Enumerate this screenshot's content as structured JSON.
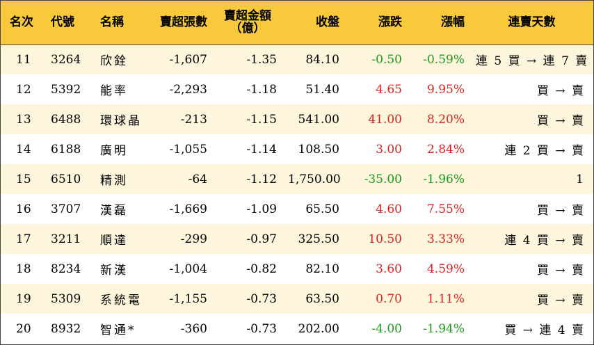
{
  "headers": {
    "rank": "名次",
    "code": "代號",
    "name": "名稱",
    "net_sell_lots": "賣超張數",
    "net_sell_amount": "賣超金額",
    "net_sell_amount_unit": "（億）",
    "close": "收盤",
    "change": "漲跌",
    "change_pct": "漲幅",
    "consecutive_days": "連賣天數"
  },
  "colors": {
    "header_bg": "#f8c93a",
    "row_alt_bg": "#fdf5dc",
    "up": "#e02020",
    "down": "#1a9a1a"
  },
  "rows": [
    {
      "rank": "11",
      "code": "3264",
      "name": "欣銓",
      "lots": "-1,607",
      "amount": "-1.35",
      "close": "84.10",
      "change": "-0.50",
      "pct": "-0.59%",
      "trend": "down",
      "days": "連 5 買 → 連 7 賣"
    },
    {
      "rank": "12",
      "code": "5392",
      "name": "能率",
      "lots": "-2,293",
      "amount": "-1.18",
      "close": "51.40",
      "change": "4.65",
      "pct": "9.95%",
      "trend": "up",
      "days": "買 → 賣"
    },
    {
      "rank": "13",
      "code": "6488",
      "name": "環球晶",
      "lots": "-213",
      "amount": "-1.15",
      "close": "541.00",
      "change": "41.00",
      "pct": "8.20%",
      "trend": "up",
      "days": "買 → 賣"
    },
    {
      "rank": "14",
      "code": "6188",
      "name": "廣明",
      "lots": "-1,055",
      "amount": "-1.14",
      "close": "108.50",
      "change": "3.00",
      "pct": "2.84%",
      "trend": "up",
      "days": "連 2 買 → 賣"
    },
    {
      "rank": "15",
      "code": "6510",
      "name": "精測",
      "lots": "-64",
      "amount": "-1.12",
      "close": "1,750.00",
      "change": "-35.00",
      "pct": "-1.96%",
      "trend": "down",
      "days": "1"
    },
    {
      "rank": "16",
      "code": "3707",
      "name": "漢磊",
      "lots": "-1,669",
      "amount": "-1.09",
      "close": "65.50",
      "change": "4.60",
      "pct": "7.55%",
      "trend": "up",
      "days": "買 → 賣"
    },
    {
      "rank": "17",
      "code": "3211",
      "name": "順達",
      "lots": "-299",
      "amount": "-0.97",
      "close": "325.50",
      "change": "10.50",
      "pct": "3.33%",
      "trend": "up",
      "days": "連 4 買 → 賣"
    },
    {
      "rank": "18",
      "code": "8234",
      "name": "新漢",
      "lots": "-1,004",
      "amount": "-0.82",
      "close": "82.10",
      "change": "3.60",
      "pct": "4.59%",
      "trend": "up",
      "days": "買 → 賣"
    },
    {
      "rank": "19",
      "code": "5309",
      "name": "系統電",
      "lots": "-1,155",
      "amount": "-0.73",
      "close": "63.50",
      "change": "0.70",
      "pct": "1.11%",
      "trend": "up",
      "days": "買 → 賣"
    },
    {
      "rank": "20",
      "code": "8932",
      "name": "智通*",
      "lots": "-360",
      "amount": "-0.73",
      "close": "202.00",
      "change": "-4.00",
      "pct": "-1.94%",
      "trend": "down",
      "days": "買 → 連 4 賣"
    }
  ]
}
